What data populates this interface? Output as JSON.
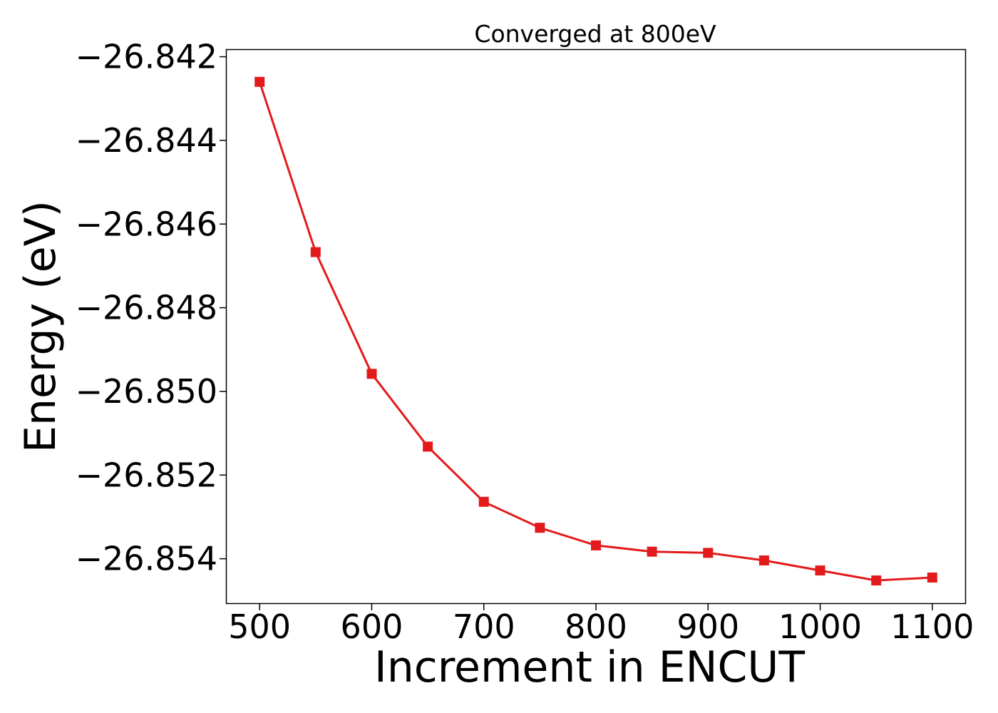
{
  "chart_data": {
    "type": "line",
    "title": "Converged at 800eV",
    "xlabel": "Increment in ENCUT",
    "ylabel": "Energy (eV)",
    "xlim": [
      470,
      1130
    ],
    "ylim": [
      -26.85508,
      -26.84182
    ],
    "xticks": [
      500,
      600,
      700,
      800,
      900,
      1000,
      1100
    ],
    "yticks": [
      -26.842,
      -26.844,
      -26.846,
      -26.848,
      -26.85,
      -26.852,
      -26.854
    ],
    "ytick_labels": [
      "−26.842",
      "−26.844",
      "−26.846",
      "−26.848",
      "−26.850",
      "−26.852",
      "−26.854"
    ],
    "grid": false,
    "series": [
      {
        "color": "#e31a1c",
        "marker": "square",
        "x": [
          500,
          550,
          600,
          650,
          700,
          750,
          800,
          850,
          900,
          950,
          1000,
          1050,
          1100
        ],
        "y": [
          -26.8426,
          -26.84667,
          -26.84958,
          -26.85132,
          -26.85264,
          -26.85326,
          -26.85368,
          -26.85383,
          -26.85386,
          -26.85404,
          -26.85428,
          -26.85452,
          -26.85445
        ]
      }
    ]
  }
}
